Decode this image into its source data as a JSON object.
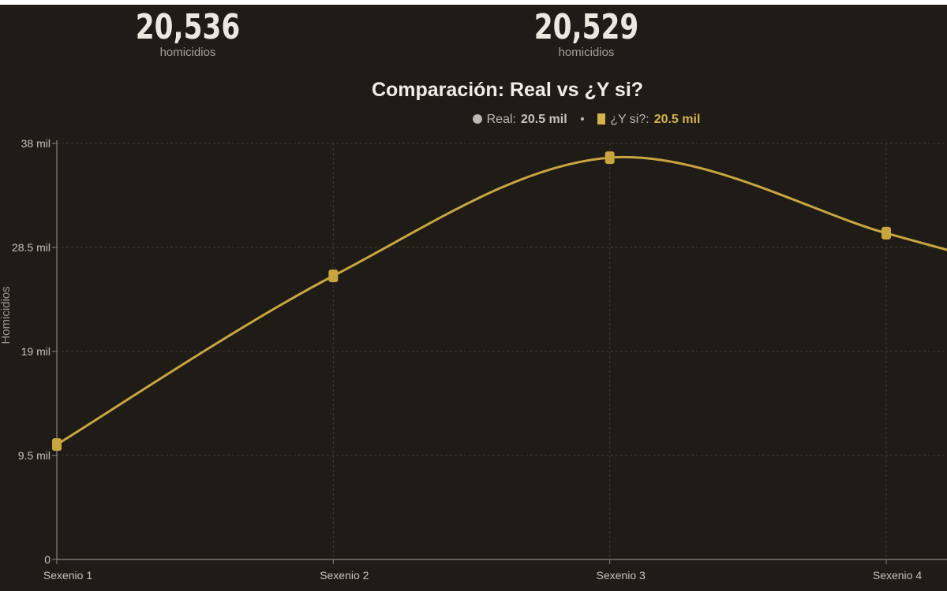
{
  "stats": {
    "real": {
      "value": "20,536",
      "label": "homicidios"
    },
    "whatif": {
      "value": "20,529",
      "label": "homicidios"
    }
  },
  "legend": {
    "real_label": "Real:",
    "real_value": "20.5 mil",
    "separator": "•",
    "whatif_label": "¿Y si?:",
    "whatif_value": "20.5 mil"
  },
  "colors": {
    "background": "#1f1b17",
    "series": "#c9a53f",
    "grid": "#3d3832",
    "axis": "#8a847c"
  },
  "chart_data": {
    "type": "line",
    "title": "Comparación: Real vs ¿Y si?",
    "ylabel": "Homicidios",
    "xlabel": "",
    "categories": [
      "Sexenio 1",
      "Sexenio 2",
      "Sexenio 3",
      "Sexenio 4"
    ],
    "ylim": [
      0,
      38000
    ],
    "yticks": [
      0,
      9500,
      19000,
      28500,
      38000
    ],
    "ytick_labels": [
      "0",
      "9.5 mil",
      "19 mil",
      "28.5 mil",
      "38 mil"
    ],
    "grid": true,
    "series": [
      {
        "values": [
          10500,
          25900,
          36700,
          29800
        ]
      }
    ]
  }
}
